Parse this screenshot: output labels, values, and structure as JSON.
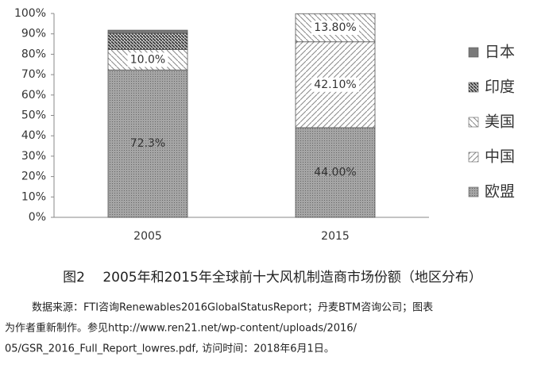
{
  "chart_data": {
    "type": "stacked-bar",
    "categories": [
      "2005",
      "2015"
    ],
    "series": [
      {
        "name": "欧盟",
        "color": "#9a9a9a",
        "pattern": "dots",
        "values": [
          72.3,
          44.0
        ],
        "value_labels": [
          "72.3%",
          "44.00%"
        ]
      },
      {
        "name": "中国",
        "color": "#8a8a8a",
        "pattern": "slash",
        "values": [
          null,
          42.1
        ],
        "value_labels": [
          null,
          "42.10%"
        ]
      },
      {
        "name": "美国",
        "color": "#8a8a8a",
        "pattern": "backslash",
        "values": [
          10.0,
          13.8
        ],
        "value_labels": [
          "10.0%",
          "13.80%"
        ]
      },
      {
        "name": "印度",
        "color": "#444444",
        "pattern": "dense",
        "values": [
          8,
          null
        ]
      },
      {
        "name": "日本",
        "color": "#7a7a7a",
        "pattern": "solid",
        "values": [
          1.5,
          null
        ]
      }
    ],
    "ylim": [
      0,
      100
    ],
    "yticks": [
      {
        "value": 0,
        "label": "0%"
      },
      {
        "value": 10,
        "label": "10%"
      },
      {
        "value": 20,
        "label": "20%"
      },
      {
        "value": 30,
        "label": "30%"
      },
      {
        "value": 40,
        "label": "40%"
      },
      {
        "value": 50,
        "label": "50%"
      },
      {
        "value": 60,
        "label": "60%"
      },
      {
        "value": 70,
        "label": "70%"
      },
      {
        "value": 80,
        "label": "80%"
      },
      {
        "value": 90,
        "label": "90%"
      },
      {
        "value": 100,
        "label": "100%"
      }
    ],
    "legend": "right"
  },
  "caption": "图2　 2005年和2015年全球前十大风机制造商市场份额（地区分布）",
  "source": [
    "数据来源：FTI咨询Renewables2016GlobalStatusReport；丹麦BTM咨询公司；图表",
    "为作者重新制作。参见http://www.ren21.net/wp-content/uploads/2016/",
    "05/GSR_2016_Full_Report_lowres.pdf, 访问时间：2018年6月1日。"
  ]
}
